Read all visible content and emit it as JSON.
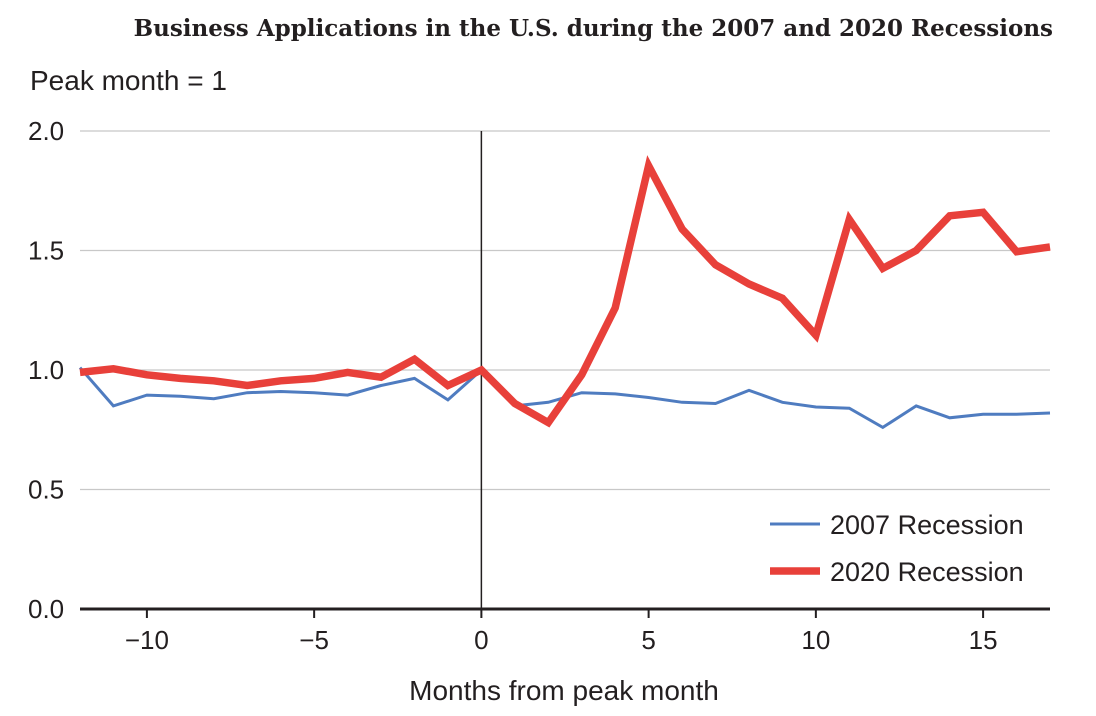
{
  "chart_data": {
    "type": "line",
    "title": "Business Applications in the U.S. during the 2007 and 2020 Recessions",
    "ylabel": "Peak month = 1",
    "xlabel": "Months from peak month",
    "xlim": [
      -12,
      17
    ],
    "ylim": [
      0,
      2
    ],
    "grid": "horizontal",
    "reference_line_x": 0,
    "legend_position": "bottom-right",
    "x_ticks": [
      -10,
      -5,
      0,
      5,
      10,
      15
    ],
    "x_tick_labels": [
      "−10",
      "−5",
      "0",
      "5",
      "10",
      "15"
    ],
    "y_ticks": [
      0,
      0.5,
      1,
      1.5,
      2
    ],
    "y_tick_labels": [
      "0.0",
      "0.5",
      "1.0",
      "1.5",
      "2.0"
    ],
    "x": [
      -12,
      -11,
      -10,
      -9,
      -8,
      -7,
      -6,
      -5,
      -4,
      -3,
      -2,
      -1,
      0,
      1,
      2,
      3,
      4,
      5,
      6,
      7,
      8,
      9,
      10,
      11,
      12,
      13,
      14,
      15,
      16,
      17
    ],
    "series": [
      {
        "name": "2007 Recession",
        "color": "#4f7cc0",
        "values": [
          1.01,
          0.85,
          0.895,
          0.89,
          0.88,
          0.905,
          0.91,
          0.905,
          0.895,
          0.935,
          0.965,
          0.875,
          1.0,
          0.85,
          0.865,
          0.905,
          0.9,
          0.885,
          0.865,
          0.86,
          0.915,
          0.865,
          0.845,
          0.84,
          0.76,
          0.85,
          0.8,
          0.815,
          0.815,
          0.82
        ]
      },
      {
        "name": "2020 Recession",
        "color": "#e8403a",
        "values": [
          0.99,
          1.005,
          0.98,
          0.965,
          0.955,
          0.935,
          0.955,
          0.965,
          0.99,
          0.97,
          1.045,
          0.935,
          1.0,
          0.86,
          0.78,
          0.98,
          1.26,
          1.855,
          1.59,
          1.44,
          1.36,
          1.3,
          1.145,
          1.63,
          1.425,
          1.5,
          1.645,
          1.66,
          1.495,
          1.515
        ]
      }
    ]
  }
}
